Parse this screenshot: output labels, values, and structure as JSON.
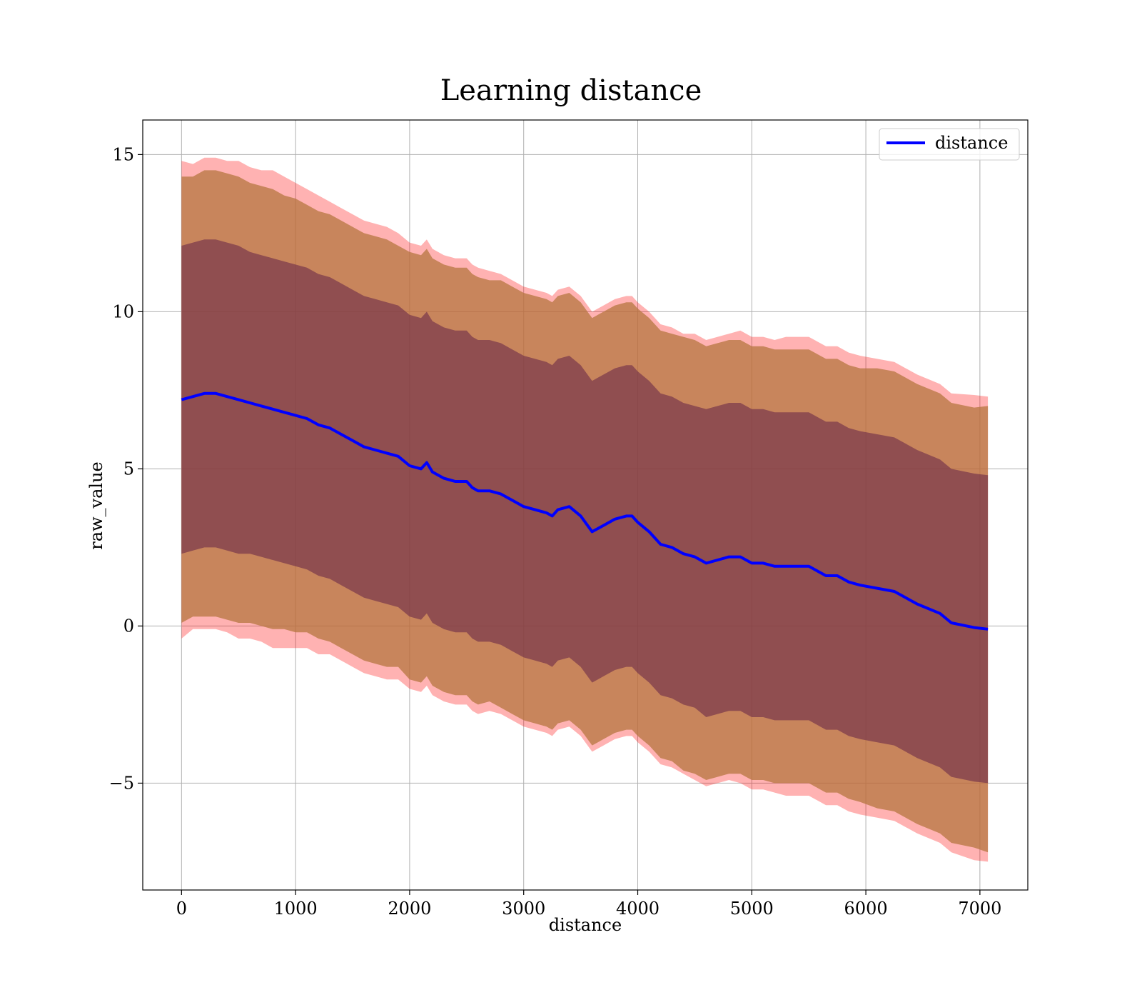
{
  "chart_data": {
    "type": "line",
    "title": "Learning distance",
    "xlabel": "distance",
    "ylabel": "raw_value",
    "xlim": [
      -340,
      7420
    ],
    "ylim": [
      -8.4,
      16.1
    ],
    "xticks": [
      0,
      1000,
      2000,
      3000,
      4000,
      5000,
      6000,
      7000
    ],
    "xtick_labels": [
      "0",
      "1000",
      "2000",
      "3000",
      "4000",
      "5000",
      "6000",
      "7000"
    ],
    "yticks": [
      -5,
      0,
      5,
      10,
      15
    ],
    "ytick_labels": [
      "−5",
      "0",
      "5",
      "10",
      "15"
    ],
    "grid": true,
    "legend": {
      "position": "top-right",
      "entries": [
        "distance"
      ]
    },
    "colors": {
      "line": "#0000ff",
      "outer_band": "#ff0000",
      "middle_band": "#b5753f",
      "inner_band": "#6b2a47"
    },
    "series": [
      {
        "name": "distance",
        "x": [
          0,
          100,
          200,
          300,
          400,
          500,
          600,
          700,
          800,
          900,
          1000,
          1100,
          1200,
          1300,
          1400,
          1500,
          1600,
          1700,
          1800,
          1900,
          2000,
          2100,
          2150,
          2200,
          2300,
          2400,
          2500,
          2550,
          2600,
          2700,
          2800,
          2900,
          3000,
          3100,
          3200,
          3250,
          3300,
          3400,
          3500,
          3600,
          3650,
          3700,
          3800,
          3900,
          3950,
          4000,
          4100,
          4200,
          4300,
          4400,
          4500,
          4600,
          4700,
          4800,
          4900,
          5000,
          5100,
          5200,
          5300,
          5400,
          5500,
          5600,
          5650,
          5750,
          5850,
          5950,
          6100,
          6250,
          6450,
          6650,
          6750,
          6950,
          7070
        ],
        "y": [
          7.2,
          7.3,
          7.4,
          7.4,
          7.3,
          7.2,
          7.1,
          7.0,
          6.9,
          6.8,
          6.7,
          6.6,
          6.4,
          6.3,
          6.1,
          5.9,
          5.7,
          5.6,
          5.5,
          5.4,
          5.1,
          5.0,
          5.2,
          4.9,
          4.7,
          4.6,
          4.6,
          4.4,
          4.3,
          4.3,
          4.2,
          4.0,
          3.8,
          3.7,
          3.6,
          3.5,
          3.7,
          3.8,
          3.5,
          3.0,
          3.1,
          3.2,
          3.4,
          3.5,
          3.5,
          3.3,
          3.0,
          2.6,
          2.5,
          2.3,
          2.2,
          2.0,
          2.1,
          2.2,
          2.2,
          2.0,
          2.0,
          1.9,
          1.9,
          1.9,
          1.9,
          1.7,
          1.6,
          1.6,
          1.4,
          1.3,
          1.2,
          1.1,
          0.7,
          0.4,
          0.1,
          -0.05,
          -0.1
        ]
      }
    ],
    "bands": [
      {
        "level": "outer",
        "half_width": [
          7.6,
          7.4,
          7.5,
          7.5,
          7.5,
          7.6,
          7.5,
          7.5,
          7.6,
          7.5,
          7.4,
          7.3,
          7.3,
          7.2,
          7.2,
          7.2,
          7.2,
          7.2,
          7.2,
          7.1,
          7.1,
          7.1,
          7.1,
          7.1,
          7.1,
          7.1,
          7.1,
          7.1,
          7.1,
          7.0,
          7.0,
          7.0,
          7.0,
          7.0,
          7.0,
          7.0,
          7.0,
          7.0,
          7.0,
          7.0,
          7.0,
          7.0,
          7.0,
          7.0,
          7.0,
          7.0,
          7.0,
          7.0,
          7.0,
          7.0,
          7.1,
          7.1,
          7.1,
          7.1,
          7.2,
          7.2,
          7.2,
          7.2,
          7.3,
          7.3,
          7.3,
          7.3,
          7.3,
          7.3,
          7.3,
          7.3,
          7.3,
          7.3,
          7.3,
          7.3,
          7.3,
          7.4,
          7.4
        ]
      },
      {
        "level": "middle",
        "half_width": [
          7.1,
          7.0,
          7.1,
          7.1,
          7.1,
          7.1,
          7.0,
          7.0,
          7.0,
          6.9,
          6.9,
          6.8,
          6.8,
          6.8,
          6.8,
          6.8,
          6.8,
          6.8,
          6.8,
          6.7,
          6.8,
          6.8,
          6.8,
          6.8,
          6.8,
          6.8,
          6.8,
          6.8,
          6.8,
          6.7,
          6.8,
          6.8,
          6.8,
          6.8,
          6.8,
          6.8,
          6.8,
          6.8,
          6.8,
          6.8,
          6.8,
          6.8,
          6.8,
          6.8,
          6.8,
          6.8,
          6.8,
          6.8,
          6.8,
          6.9,
          6.9,
          6.9,
          6.9,
          6.9,
          6.9,
          6.9,
          6.9,
          6.9,
          6.9,
          6.9,
          6.9,
          6.9,
          6.9,
          6.9,
          6.9,
          6.9,
          7.0,
          7.0,
          7.0,
          7.0,
          7.0,
          7.0,
          7.1
        ]
      },
      {
        "level": "inner",
        "half_width": [
          4.9,
          4.9,
          4.9,
          4.9,
          4.9,
          4.9,
          4.8,
          4.8,
          4.8,
          4.8,
          4.8,
          4.8,
          4.8,
          4.8,
          4.8,
          4.8,
          4.8,
          4.8,
          4.8,
          4.8,
          4.8,
          4.8,
          4.8,
          4.8,
          4.8,
          4.8,
          4.8,
          4.8,
          4.8,
          4.8,
          4.8,
          4.8,
          4.8,
          4.8,
          4.8,
          4.8,
          4.8,
          4.8,
          4.8,
          4.8,
          4.8,
          4.8,
          4.8,
          4.8,
          4.8,
          4.8,
          4.8,
          4.8,
          4.8,
          4.8,
          4.8,
          4.9,
          4.9,
          4.9,
          4.9,
          4.9,
          4.9,
          4.9,
          4.9,
          4.9,
          4.9,
          4.9,
          4.9,
          4.9,
          4.9,
          4.9,
          4.9,
          4.9,
          4.9,
          4.9,
          4.9,
          4.9,
          4.9
        ]
      }
    ]
  }
}
